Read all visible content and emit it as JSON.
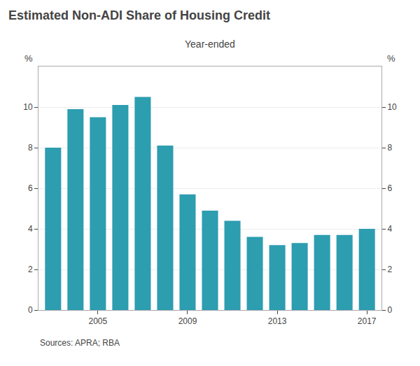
{
  "chart_data": {
    "type": "bar",
    "title": "Estimated Non-ADI Share of Housing Credit",
    "subtitle": "Year-ended",
    "ylabel": "%",
    "y2label": "%",
    "source": "Sources: APRA; RBA",
    "x": [
      2003,
      2004,
      2005,
      2006,
      2007,
      2008,
      2009,
      2010,
      2011,
      2012,
      2013,
      2014,
      2015,
      2016,
      2017
    ],
    "values": [
      8.0,
      9.9,
      9.5,
      10.1,
      10.5,
      8.1,
      5.7,
      4.9,
      4.4,
      3.6,
      3.2,
      3.3,
      3.7,
      3.7,
      4.0
    ],
    "color": "#2d9db0",
    "xlim": [
      2002.35,
      2017.65
    ],
    "xticks": [
      2005,
      2009,
      2013,
      2017
    ],
    "ylim": [
      0,
      12
    ],
    "yticks": [
      0,
      2,
      4,
      6,
      8,
      10
    ],
    "y2lim": [
      0,
      12
    ],
    "y2ticks": [
      0,
      2,
      4,
      6,
      8,
      10
    ],
    "grid": true
  }
}
